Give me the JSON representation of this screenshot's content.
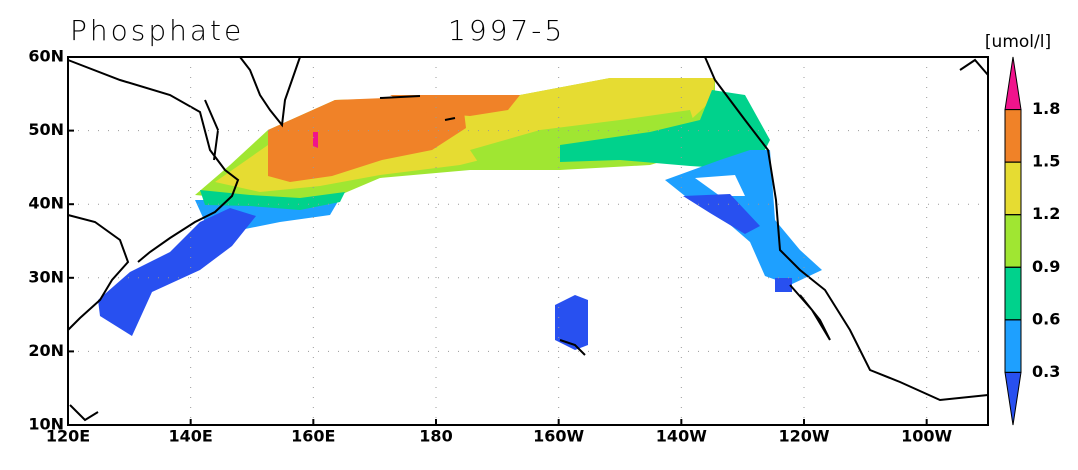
{
  "title": "Phosphate",
  "period": "1997-5",
  "units": "[umol/l]",
  "map": {
    "lon_range": [
      120,
      270
    ],
    "lat_range": [
      10,
      60
    ],
    "lat_ticks": [
      {
        "value": 60,
        "label": "60N"
      },
      {
        "value": 50,
        "label": "50N"
      },
      {
        "value": 40,
        "label": "40N"
      },
      {
        "value": 30,
        "label": "30N"
      },
      {
        "value": 20,
        "label": "20N"
      },
      {
        "value": 10,
        "label": "10N"
      }
    ],
    "lon_ticks": [
      {
        "value": 120,
        "label": "120E"
      },
      {
        "value": 140,
        "label": "140E"
      },
      {
        "value": 160,
        "label": "160E"
      },
      {
        "value": 180,
        "label": "180"
      },
      {
        "value": 200,
        "label": "160W"
      },
      {
        "value": 220,
        "label": "140W"
      },
      {
        "value": 240,
        "label": "120W"
      },
      {
        "value": 260,
        "label": "100W"
      }
    ],
    "grid": true
  },
  "colorbar": {
    "levels": [
      1.8,
      1.5,
      1.2,
      0.9,
      0.6,
      0.3
    ],
    "colors": [
      "#f0148c",
      "#f08228",
      "#e6dc32",
      "#a0e632",
      "#00d28c",
      "#1ea0ff",
      "#2850f0"
    ]
  }
}
